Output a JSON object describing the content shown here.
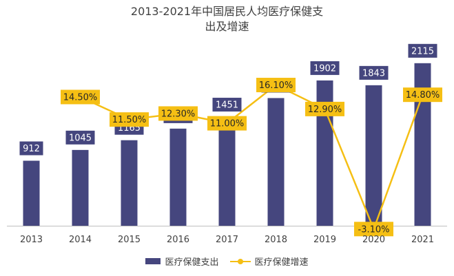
{
  "chart_data": {
    "type": "bar",
    "title": [
      "2013-2021年中国居民人均医疗保健支",
      "出及增速"
    ],
    "categories": [
      "2013",
      "2014",
      "2015",
      "2016",
      "2017",
      "2018",
      "2019",
      "2020",
      "2021"
    ],
    "series": [
      {
        "name": "医疗保健支出",
        "type": "bar",
        "values": [
          912,
          1045,
          1165,
          1308,
          1451,
          1685,
          1902,
          1843,
          2115
        ],
        "labels": [
          "912",
          "1045",
          "1165",
          "1308",
          "1451",
          "1685",
          "1902",
          "1843",
          "2115"
        ],
        "color": "#45467e"
      },
      {
        "name": "医疗保健增速",
        "type": "line",
        "values": [
          null,
          14.5,
          11.5,
          12.3,
          11.0,
          16.1,
          12.9,
          -3.1,
          14.8
        ],
        "labels": [
          "",
          "14.50%",
          "11.50%",
          "12.30%",
          "11.00%",
          "16.10%",
          "12.90%",
          "-3.10%",
          "14.80%"
        ],
        "color": "#f5bf14"
      }
    ],
    "legend": "bottom",
    "grid": false
  }
}
